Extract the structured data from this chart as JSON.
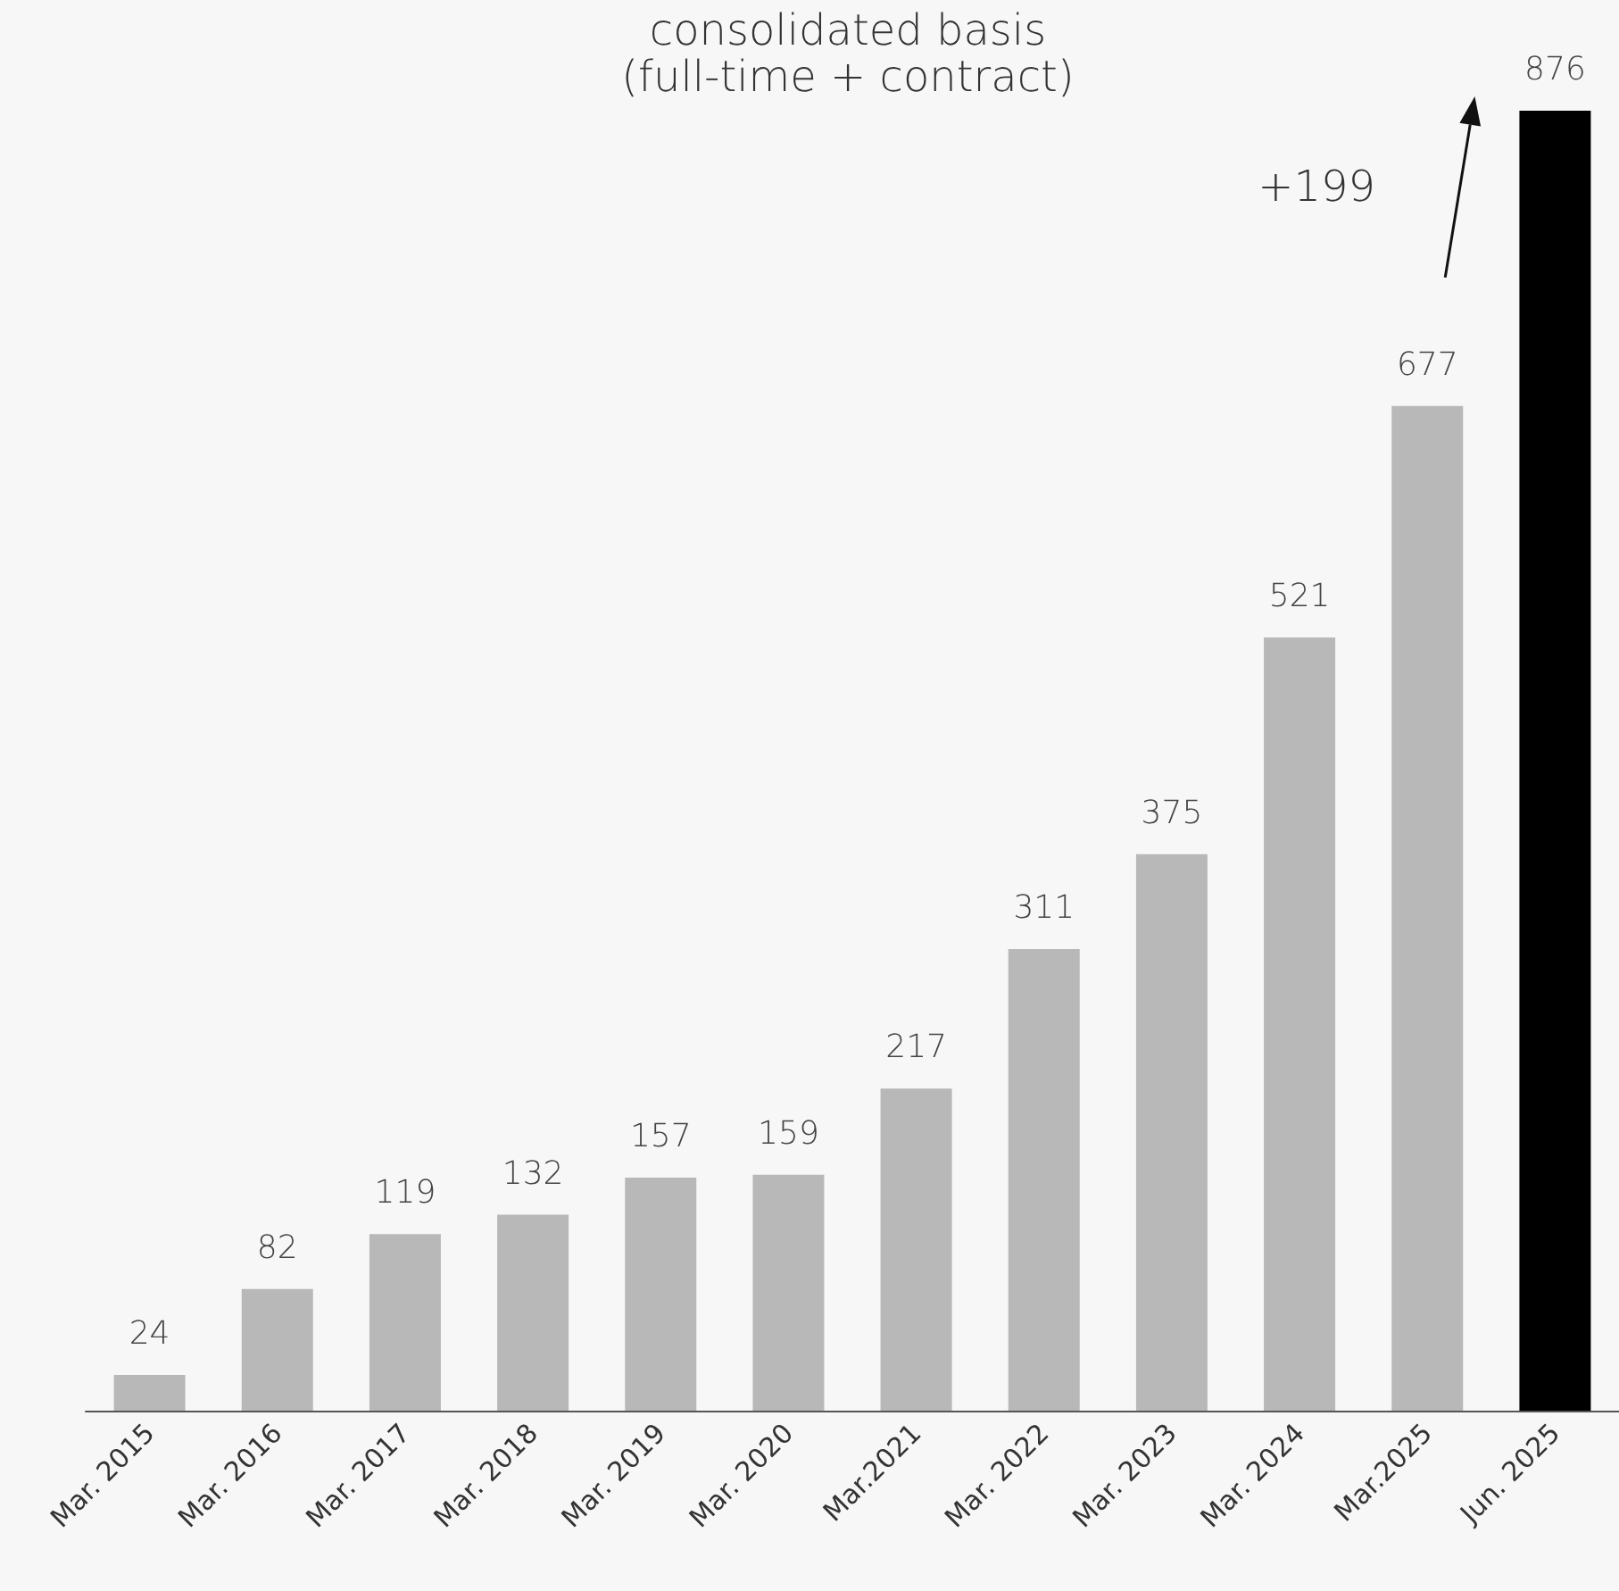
{
  "chart_data": {
    "type": "bar",
    "title": "consolidated basis",
    "subtitle": "(full-time + contract)",
    "categories": [
      "Mar. 2015",
      "Mar. 2016",
      "Mar. 2017",
      "Mar. 2018",
      "Mar. 2019",
      "Mar. 2020",
      "Mar.2021",
      "Mar. 2022",
      "Mar. 2023",
      "Mar. 2024",
      "Mar.2025",
      "Jun. 2025"
    ],
    "values": [
      24,
      82,
      119,
      132,
      157,
      159,
      217,
      311,
      375,
      521,
      677,
      876
    ],
    "colors": [
      "#b8b8b8",
      "#b8b8b8",
      "#b8b8b8",
      "#b8b8b8",
      "#b8b8b8",
      "#b8b8b8",
      "#b8b8b8",
      "#b8b8b8",
      "#b8b8b8",
      "#b8b8b8",
      "#b8b8b8",
      "#000000"
    ],
    "data_labels": true,
    "annotations": [
      "+199"
    ]
  }
}
